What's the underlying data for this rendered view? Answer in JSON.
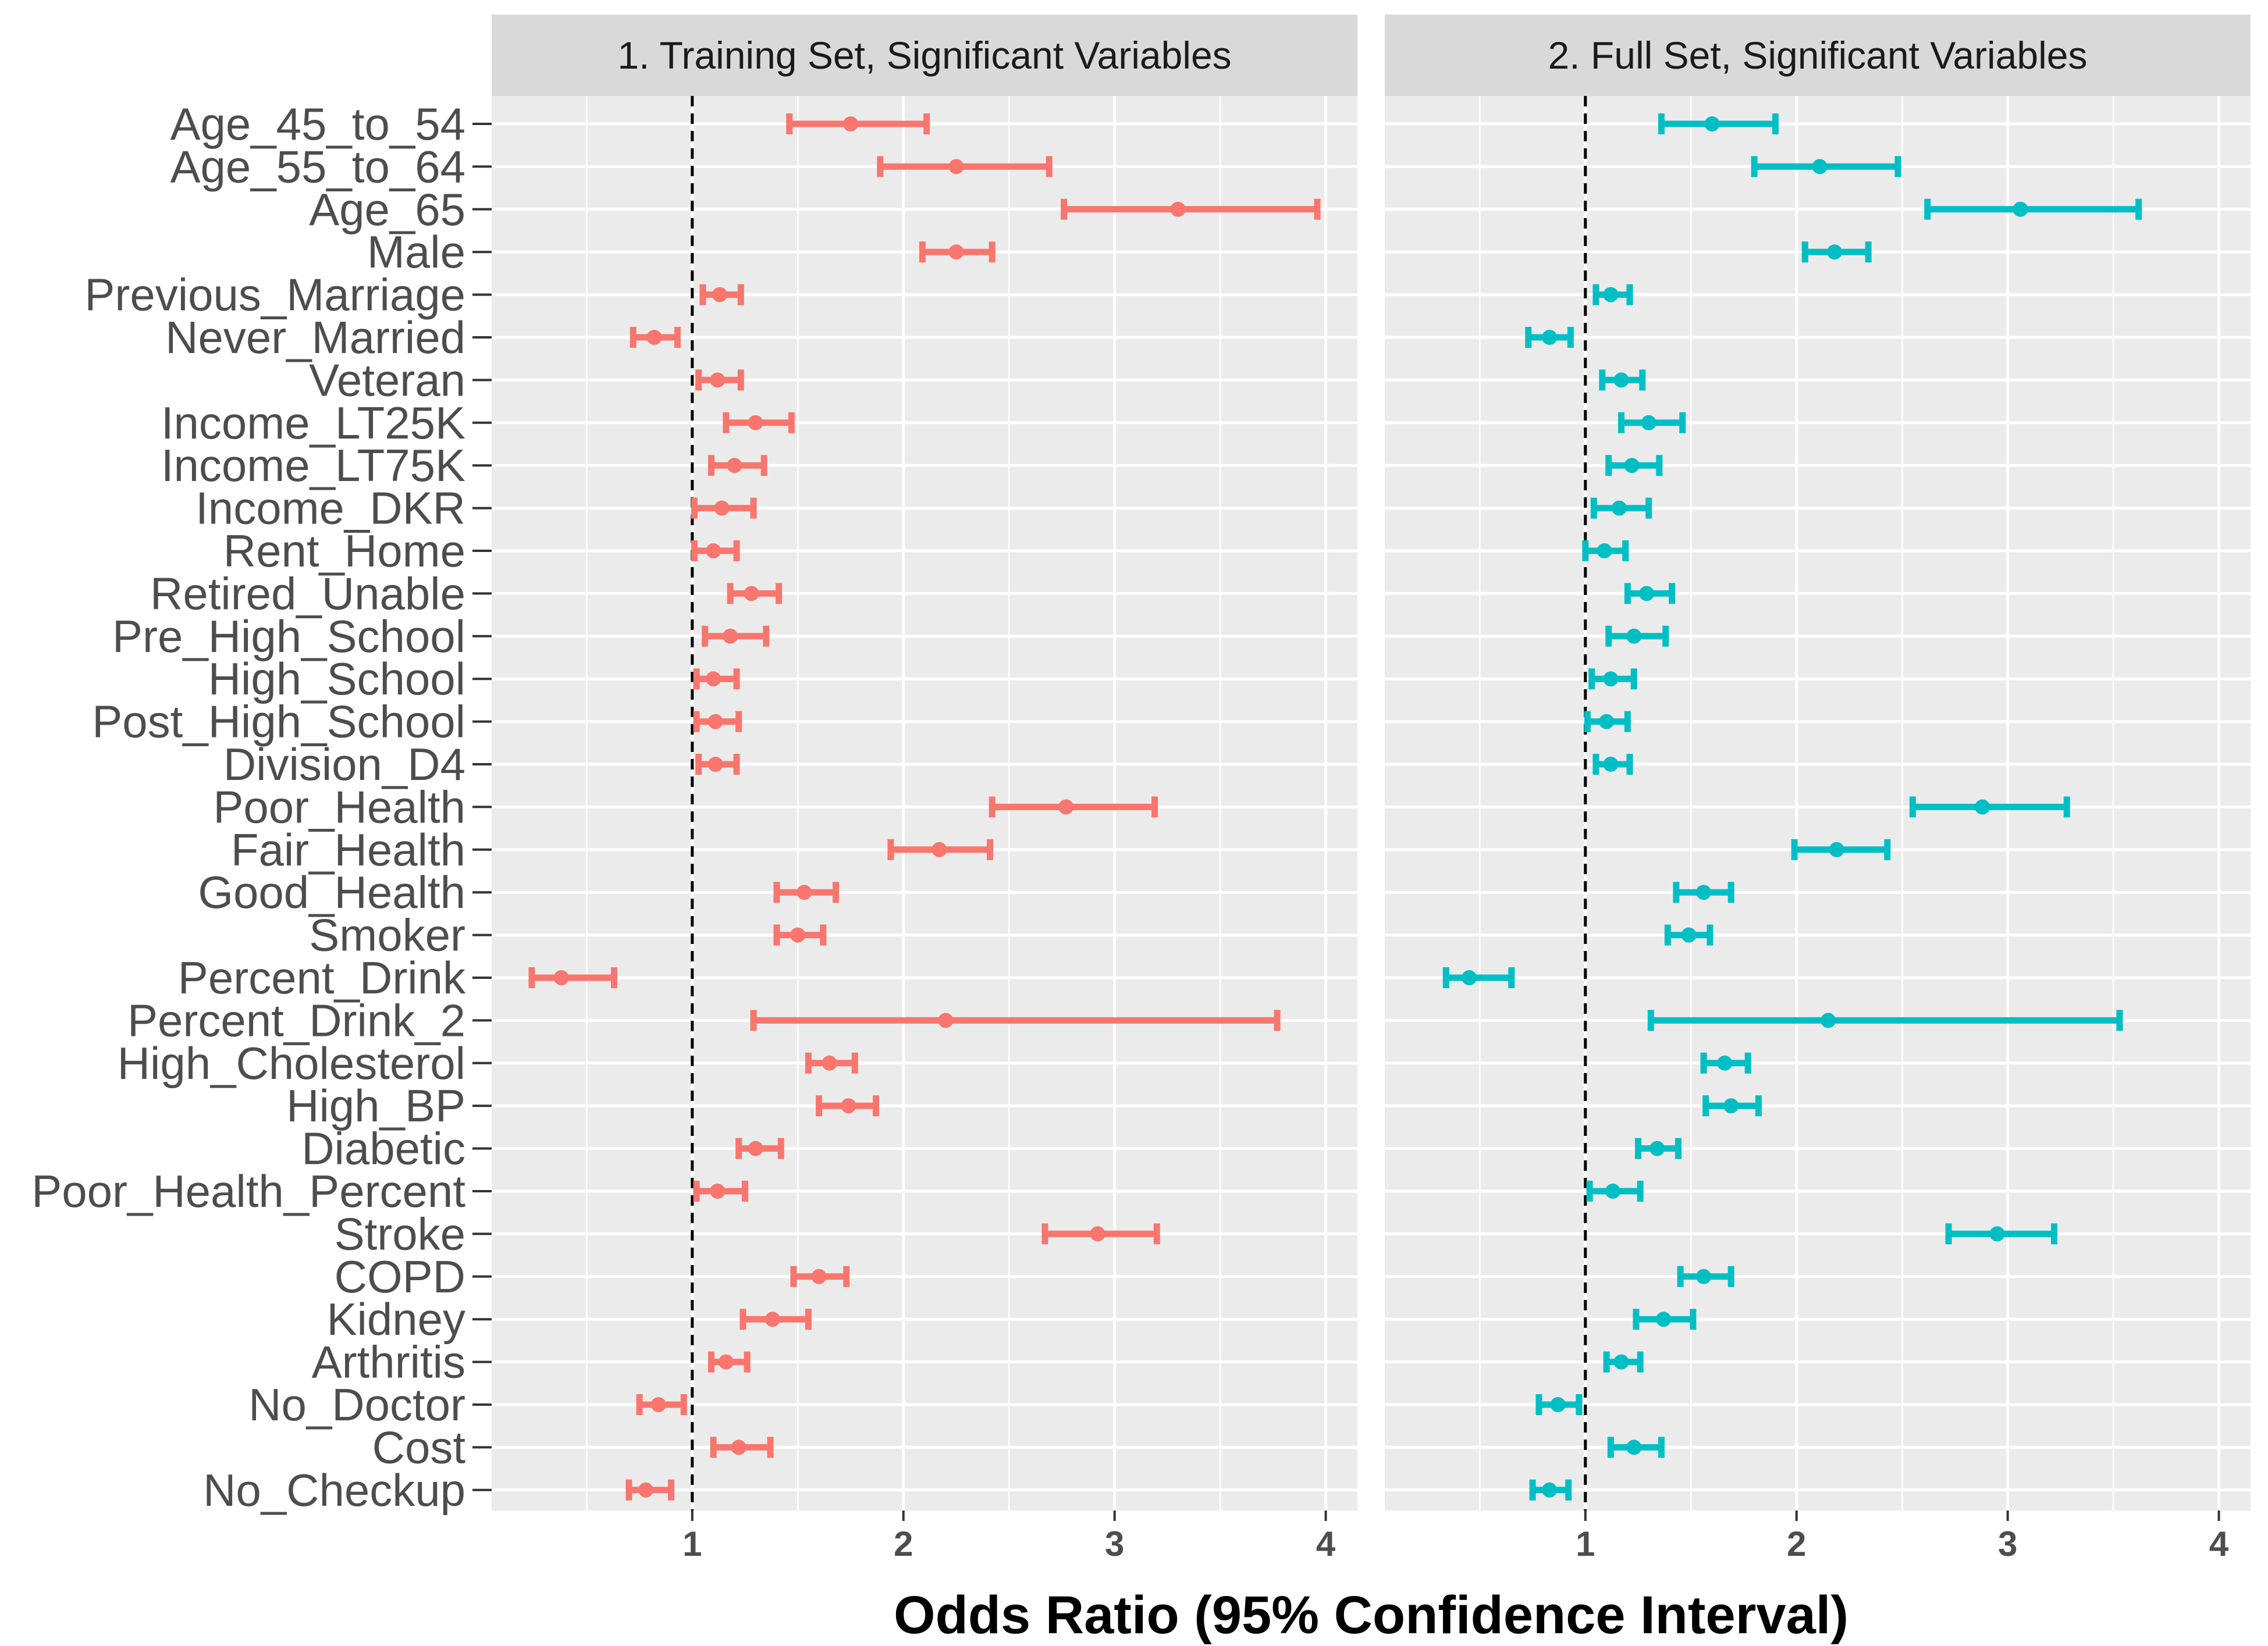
{
  "chart_data": {
    "type": "forest",
    "xlabel": "Odds Ratio (95% Confidence Interval)",
    "reference_line": 1,
    "xlim": [
      0.05,
      4.15
    ],
    "xticks": [
      1,
      2,
      3,
      4
    ],
    "variables": [
      "Age_45_to_54",
      "Age_55_to_64",
      "Age_65",
      "Male",
      "Previous_Marriage",
      "Never_Married",
      "Veteran",
      "Income_LT25K",
      "Income_LT75K",
      "Income_DKR",
      "Rent_Home",
      "Retired_Unable",
      "Pre_High_School",
      "High_School",
      "Post_High_School",
      "Division_D4",
      "Poor_Health",
      "Fair_Health",
      "Good_Health",
      "Smoker",
      "Percent_Drink",
      "Percent_Drink_2",
      "High_Cholesterol",
      "High_BP",
      "Diabetic",
      "Poor_Health_Percent",
      "Stroke",
      "COPD",
      "Kidney",
      "Arthritis",
      "No_Doctor",
      "Cost",
      "No_Checkup"
    ],
    "panels": [
      {
        "title": "1. Training Set, Significant Variables",
        "color": "#F8766D",
        "estimates": [
          1.75,
          2.25,
          3.3,
          2.25,
          1.13,
          0.82,
          1.12,
          1.3,
          1.2,
          1.14,
          1.1,
          1.28,
          1.18,
          1.1,
          1.11,
          1.11,
          2.77,
          2.17,
          1.53,
          1.5,
          0.38,
          2.2,
          1.65,
          1.74,
          1.3,
          1.12,
          2.92,
          1.6,
          1.38,
          1.16,
          0.84,
          1.22,
          0.78
        ],
        "lower": [
          1.46,
          1.89,
          2.76,
          2.09,
          1.05,
          0.72,
          1.03,
          1.16,
          1.09,
          1.01,
          1.01,
          1.18,
          1.06,
          1.02,
          1.02,
          1.03,
          2.42,
          1.94,
          1.4,
          1.4,
          0.24,
          1.29,
          1.55,
          1.6,
          1.22,
          1.02,
          2.67,
          1.48,
          1.24,
          1.09,
          0.75,
          1.1,
          0.7
        ],
        "upper": [
          2.11,
          2.69,
          3.96,
          2.42,
          1.23,
          0.93,
          1.23,
          1.47,
          1.34,
          1.29,
          1.21,
          1.41,
          1.35,
          1.21,
          1.22,
          1.21,
          3.19,
          2.41,
          1.68,
          1.62,
          0.63,
          3.77,
          1.77,
          1.87,
          1.42,
          1.25,
          3.2,
          1.73,
          1.55,
          1.26,
          0.96,
          1.37,
          0.9
        ]
      },
      {
        "title": "2. Full Set, Significant Variables",
        "color": "#00BFC4",
        "estimates": [
          1.6,
          2.11,
          3.06,
          2.18,
          1.12,
          0.83,
          1.17,
          1.3,
          1.22,
          1.16,
          1.09,
          1.29,
          1.23,
          1.12,
          1.1,
          1.12,
          2.88,
          2.19,
          1.56,
          1.49,
          0.45,
          2.15,
          1.66,
          1.69,
          1.34,
          1.13,
          2.95,
          1.56,
          1.37,
          1.17,
          0.87,
          1.23,
          0.83
        ],
        "lower": [
          1.36,
          1.8,
          2.62,
          2.04,
          1.05,
          0.73,
          1.08,
          1.17,
          1.11,
          1.04,
          1.0,
          1.2,
          1.11,
          1.03,
          1.01,
          1.05,
          2.55,
          1.99,
          1.43,
          1.39,
          0.34,
          1.31,
          1.56,
          1.57,
          1.25,
          1.02,
          2.72,
          1.45,
          1.24,
          1.1,
          0.78,
          1.12,
          0.75
        ],
        "upper": [
          1.9,
          2.48,
          3.62,
          2.34,
          1.21,
          0.93,
          1.27,
          1.46,
          1.35,
          1.3,
          1.19,
          1.41,
          1.38,
          1.23,
          1.2,
          1.21,
          3.28,
          2.43,
          1.69,
          1.59,
          0.65,
          3.53,
          1.77,
          1.82,
          1.44,
          1.26,
          3.22,
          1.69,
          1.51,
          1.26,
          0.97,
          1.36,
          0.92
        ]
      }
    ]
  }
}
